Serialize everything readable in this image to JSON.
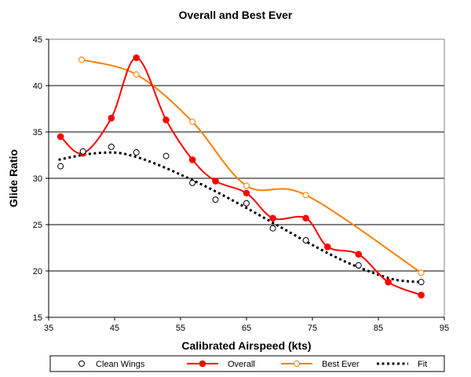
{
  "chart_data": {
    "type": "line",
    "title": "Overall and Best Ever",
    "xlabel": "Calibrated Airspeed (kts)",
    "ylabel": "Glide Ratio",
    "xlim": [
      35,
      95
    ],
    "ylim": [
      15,
      45
    ],
    "x_ticks": [
      35,
      45,
      55,
      65,
      75,
      85,
      95
    ],
    "y_ticks": [
      15,
      20,
      25,
      30,
      35,
      40,
      45
    ],
    "grid": "horizontal",
    "legend_position": "bottom",
    "series": [
      {
        "name": "Clean Wings",
        "style": "markers",
        "color": "#000000",
        "marker": "open-circle",
        "points": [
          [
            36.8,
            31.3
          ],
          [
            40.2,
            32.9
          ],
          [
            44.5,
            33.4
          ],
          [
            48.3,
            32.8
          ],
          [
            52.8,
            32.4
          ],
          [
            56.8,
            29.5
          ],
          [
            60.3,
            27.7
          ],
          [
            65.0,
            27.3
          ],
          [
            69.0,
            24.6
          ],
          [
            74.0,
            23.3
          ],
          [
            82.0,
            20.6
          ],
          [
            91.5,
            18.8
          ]
        ]
      },
      {
        "name": "Overall",
        "style": "smooth-line-markers",
        "color": "#ff0000",
        "marker": "filled-circle",
        "points": [
          [
            36.8,
            34.5
          ],
          [
            40.2,
            32.7
          ],
          [
            44.5,
            36.5
          ],
          [
            48.3,
            43.0
          ],
          [
            52.8,
            36.3
          ],
          [
            56.8,
            32.0
          ],
          [
            60.3,
            29.7
          ],
          [
            65.0,
            28.4
          ],
          [
            69.0,
            25.7
          ],
          [
            74.0,
            25.7
          ],
          [
            77.3,
            22.6
          ],
          [
            82.0,
            21.8
          ],
          [
            86.5,
            18.8
          ],
          [
            91.5,
            17.4
          ]
        ]
      },
      {
        "name": "Best Ever",
        "style": "smooth-line-markers",
        "color": "#ff8000",
        "marker": "open-circle",
        "points": [
          [
            40.0,
            42.8
          ],
          [
            48.3,
            41.2
          ],
          [
            56.8,
            36.1
          ],
          [
            65.0,
            29.2
          ],
          [
            74.0,
            28.2
          ],
          [
            91.5,
            19.8
          ]
        ]
      },
      {
        "name": "Fit",
        "style": "dotted-line",
        "color": "#000000",
        "marker": "none",
        "points": [
          [
            36.5,
            32.0
          ],
          [
            40.0,
            32.5
          ],
          [
            43.0,
            32.75
          ],
          [
            46.0,
            32.7
          ],
          [
            50.0,
            31.9
          ],
          [
            55.0,
            30.4
          ],
          [
            60.0,
            28.7
          ],
          [
            65.0,
            26.8
          ],
          [
            70.0,
            24.8
          ],
          [
            75.0,
            22.8
          ],
          [
            80.0,
            21.0
          ],
          [
            85.0,
            19.6
          ],
          [
            88.0,
            19.0
          ],
          [
            91.5,
            18.8
          ]
        ]
      }
    ]
  }
}
